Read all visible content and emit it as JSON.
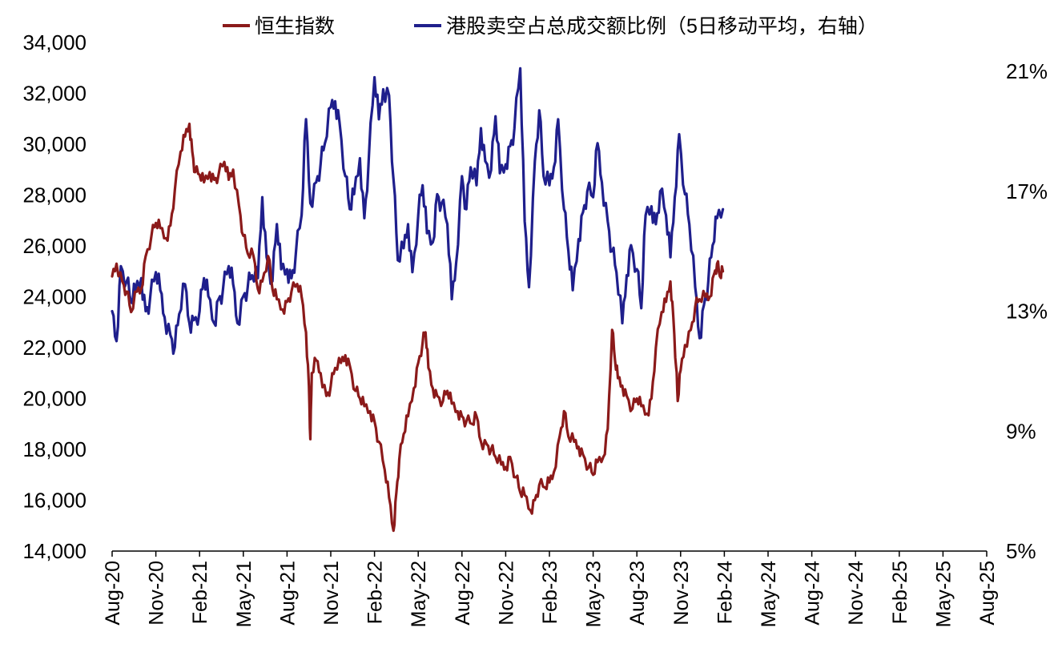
{
  "chart_data": {
    "type": "line",
    "title": "",
    "x_ticks": [
      "Aug-20",
      "Nov-20",
      "Feb-21",
      "May-21",
      "Aug-21",
      "Nov-21",
      "Feb-22",
      "May-22",
      "Aug-22",
      "Nov-22",
      "Feb-23",
      "May-23",
      "Aug-23",
      "Nov-23",
      "Feb-24",
      "May-24",
      "Aug-24",
      "Nov-24",
      "Feb-25",
      "May-25",
      "Aug-25"
    ],
    "x_range": [
      "Aug-20",
      "Aug-25"
    ],
    "y_left": {
      "ticks": [
        "34,000",
        "32,000",
        "30,000",
        "28,000",
        "26,000",
        "24,000",
        "22,000",
        "20,000",
        "18,000",
        "16,000",
        "14,000"
      ],
      "range": [
        14000,
        34000
      ]
    },
    "y_right": {
      "ticks": [
        "21%",
        "17%",
        "13%",
        "9%",
        "5%"
      ],
      "range": [
        5,
        21.5
      ]
    },
    "legend_position": "top",
    "grid": false,
    "series": [
      {
        "name": "恒生指数",
        "axis": "left",
        "color": "#8B1A1A",
        "points": [
          [
            0,
            24800
          ],
          [
            0.3,
            25300
          ],
          [
            0.7,
            24600
          ],
          [
            1.0,
            24200
          ],
          [
            1.3,
            23400
          ],
          [
            1.7,
            24200
          ],
          [
            2.0,
            24300
          ],
          [
            2.3,
            25600
          ],
          [
            2.7,
            26400
          ],
          [
            3.0,
            26900
          ],
          [
            3.3,
            26700
          ],
          [
            3.7,
            26300
          ],
          [
            4.0,
            26800
          ],
          [
            4.3,
            28200
          ],
          [
            4.7,
            29700
          ],
          [
            5.0,
            30300
          ],
          [
            5.3,
            30800
          ],
          [
            5.5,
            29700
          ],
          [
            5.7,
            28900
          ],
          [
            6.0,
            28800
          ],
          [
            6.3,
            28500
          ],
          [
            6.7,
            28900
          ],
          [
            7.0,
            28600
          ],
          [
            7.3,
            28800
          ],
          [
            7.7,
            29300
          ],
          [
            8.0,
            28600
          ],
          [
            8.3,
            29000
          ],
          [
            8.7,
            27600
          ],
          [
            9.0,
            26400
          ],
          [
            9.3,
            25700
          ],
          [
            9.7,
            25600
          ],
          [
            10.0,
            24300
          ],
          [
            10.3,
            24600
          ],
          [
            10.7,
            25600
          ],
          [
            11.0,
            24300
          ],
          [
            11.3,
            23900
          ],
          [
            11.7,
            23500
          ],
          [
            12.0,
            23800
          ],
          [
            12.3,
            24200
          ],
          [
            12.7,
            24500
          ],
          [
            13.0,
            24000
          ],
          [
            13.3,
            22600
          ],
          [
            13.5,
            20500
          ],
          [
            13.6,
            18400
          ],
          [
            13.7,
            21000
          ],
          [
            14.0,
            21500
          ],
          [
            14.3,
            21000
          ],
          [
            14.7,
            20100
          ],
          [
            15.0,
            20500
          ],
          [
            15.3,
            21200
          ],
          [
            15.7,
            21400
          ],
          [
            16.0,
            21700
          ],
          [
            16.3,
            21300
          ],
          [
            16.7,
            20300
          ],
          [
            17.0,
            20000
          ],
          [
            17.3,
            19700
          ],
          [
            17.7,
            19500
          ],
          [
            18.0,
            19100
          ],
          [
            18.3,
            18300
          ],
          [
            18.7,
            17200
          ],
          [
            19.0,
            16100
          ],
          [
            19.3,
            14800
          ],
          [
            19.5,
            16300
          ],
          [
            19.7,
            17600
          ],
          [
            20.0,
            18600
          ],
          [
            20.3,
            19300
          ],
          [
            20.7,
            20400
          ],
          [
            21.0,
            21400
          ],
          [
            21.3,
            22200
          ],
          [
            21.5,
            22600
          ],
          [
            21.7,
            21200
          ],
          [
            22.0,
            20400
          ],
          [
            22.3,
            20100
          ],
          [
            22.7,
            19900
          ],
          [
            23.0,
            20300
          ],
          [
            23.3,
            19800
          ],
          [
            23.7,
            19500
          ],
          [
            24.0,
            19300
          ],
          [
            24.3,
            19100
          ],
          [
            24.7,
            19000
          ],
          [
            25.0,
            19300
          ],
          [
            25.3,
            18300
          ],
          [
            25.7,
            18200
          ],
          [
            26.0,
            18000
          ],
          [
            26.3,
            17700
          ],
          [
            26.7,
            17400
          ],
          [
            27.0,
            17300
          ],
          [
            27.3,
            17700
          ],
          [
            27.7,
            16900
          ],
          [
            28.0,
            16300
          ],
          [
            28.3,
            16200
          ],
          [
            28.7,
            15600
          ],
          [
            29.0,
            16000
          ],
          [
            29.3,
            16600
          ],
          [
            29.7,
            16500
          ],
          [
            30.0,
            16700
          ],
          [
            30.3,
            17100
          ],
          [
            30.7,
            18500
          ],
          [
            31.0,
            19500
          ],
          [
            31.3,
            18500
          ],
          [
            31.7,
            18300
          ],
          [
            32.0,
            18100
          ],
          [
            32.3,
            17800
          ],
          [
            32.7,
            17300
          ],
          [
            33.0,
            17000
          ],
          [
            33.3,
            17500
          ],
          [
            33.7,
            17700
          ],
          [
            34.0,
            18800
          ],
          [
            34.3,
            22700
          ],
          [
            34.5,
            21500
          ],
          [
            34.7,
            20800
          ],
          [
            35.0,
            20500
          ],
          [
            35.3,
            20100
          ],
          [
            35.7,
            19600
          ],
          [
            36.0,
            20000
          ],
          [
            36.3,
            19700
          ],
          [
            36.7,
            19400
          ],
          [
            37.0,
            20000
          ],
          [
            37.3,
            22000
          ],
          [
            37.7,
            23400
          ],
          [
            38.0,
            23800
          ],
          [
            38.3,
            24600
          ],
          [
            38.5,
            23200
          ],
          [
            38.7,
            21200
          ],
          [
            38.8,
            19900
          ],
          [
            39.0,
            21100
          ],
          [
            39.3,
            22100
          ],
          [
            39.7,
            22700
          ],
          [
            40.0,
            23600
          ],
          [
            40.3,
            23900
          ],
          [
            40.7,
            24000
          ],
          [
            41.0,
            24000
          ],
          [
            41.3,
            24900
          ],
          [
            41.5,
            25300
          ],
          [
            41.7,
            24800
          ],
          [
            41.9,
            25000
          ]
        ]
      },
      {
        "name": "港股卖空占总成交额比例（5日移动平均，右轴）",
        "axis": "right",
        "color": "#1F1F8C",
        "points": [
          [
            0,
            13.0
          ],
          [
            0.3,
            12.0
          ],
          [
            0.6,
            14.5
          ],
          [
            1.0,
            14.0
          ],
          [
            1.3,
            13.3
          ],
          [
            1.6,
            13.7
          ],
          [
            2.0,
            14.1
          ],
          [
            2.3,
            13.0
          ],
          [
            2.6,
            13.4
          ],
          [
            3.0,
            14.3
          ],
          [
            3.3,
            13.7
          ],
          [
            3.6,
            12.8
          ],
          [
            4.0,
            12.2
          ],
          [
            4.3,
            11.8
          ],
          [
            4.6,
            12.9
          ],
          [
            5.0,
            13.9
          ],
          [
            5.3,
            12.6
          ],
          [
            5.6,
            12.7
          ],
          [
            6.0,
            13.0
          ],
          [
            6.3,
            14.1
          ],
          [
            6.6,
            13.5
          ],
          [
            7.0,
            12.6
          ],
          [
            7.3,
            13.4
          ],
          [
            7.6,
            13.7
          ],
          [
            8.0,
            14.5
          ],
          [
            8.3,
            13.9
          ],
          [
            8.6,
            12.6
          ],
          [
            9.0,
            13.5
          ],
          [
            9.3,
            13.8
          ],
          [
            9.6,
            14.2
          ],
          [
            10.0,
            14.1
          ],
          [
            10.3,
            16.8
          ],
          [
            10.6,
            14.8
          ],
          [
            11.0,
            14.0
          ],
          [
            11.3,
            15.9
          ],
          [
            11.6,
            14.4
          ],
          [
            12.0,
            14.4
          ],
          [
            12.3,
            14.1
          ],
          [
            12.6,
            14.9
          ],
          [
            13.0,
            16.2
          ],
          [
            13.3,
            19.4
          ],
          [
            13.6,
            16.6
          ],
          [
            14.0,
            17.3
          ],
          [
            14.3,
            17.9
          ],
          [
            14.6,
            18.6
          ],
          [
            15.0,
            19.8
          ],
          [
            15.3,
            20.0
          ],
          [
            15.6,
            19.3
          ],
          [
            16.0,
            17.5
          ],
          [
            16.3,
            16.4
          ],
          [
            16.6,
            16.9
          ],
          [
            17.0,
            18.1
          ],
          [
            17.3,
            16.1
          ],
          [
            17.6,
            18.0
          ],
          [
            18.0,
            20.8
          ],
          [
            18.3,
            19.4
          ],
          [
            18.6,
            20.4
          ],
          [
            19.0,
            20.2
          ],
          [
            19.3,
            17.4
          ],
          [
            19.6,
            14.7
          ],
          [
            20.0,
            15.1
          ],
          [
            20.3,
            15.9
          ],
          [
            20.6,
            14.3
          ],
          [
            21.0,
            16.2
          ],
          [
            21.3,
            17.2
          ],
          [
            21.6,
            15.6
          ],
          [
            22.0,
            15.3
          ],
          [
            22.3,
            16.9
          ],
          [
            22.6,
            16.6
          ],
          [
            23.0,
            15.9
          ],
          [
            23.3,
            13.4
          ],
          [
            23.6,
            14.6
          ],
          [
            24.0,
            17.5
          ],
          [
            24.3,
            16.4
          ],
          [
            24.6,
            17.8
          ],
          [
            25.0,
            17.2
          ],
          [
            25.3,
            19.1
          ],
          [
            25.6,
            18.0
          ],
          [
            26.0,
            17.7
          ],
          [
            26.3,
            19.5
          ],
          [
            26.6,
            17.6
          ],
          [
            27.0,
            17.9
          ],
          [
            27.3,
            18.5
          ],
          [
            27.6,
            19.1
          ],
          [
            28.0,
            21.1
          ],
          [
            28.3,
            16.0
          ],
          [
            28.6,
            13.8
          ],
          [
            29.0,
            18.0
          ],
          [
            29.3,
            19.7
          ],
          [
            29.6,
            17.5
          ],
          [
            30.0,
            17.2
          ],
          [
            30.3,
            17.8
          ],
          [
            30.6,
            19.4
          ],
          [
            31.0,
            16.4
          ],
          [
            31.3,
            15.0
          ],
          [
            31.6,
            13.7
          ],
          [
            32.0,
            15.4
          ],
          [
            32.3,
            16.3
          ],
          [
            32.6,
            17.0
          ],
          [
            33.0,
            16.8
          ],
          [
            33.3,
            18.6
          ],
          [
            33.6,
            17.3
          ],
          [
            34.0,
            16.0
          ],
          [
            34.3,
            15.0
          ],
          [
            34.6,
            14.3
          ],
          [
            35.0,
            12.6
          ],
          [
            35.3,
            14.2
          ],
          [
            35.6,
            15.2
          ],
          [
            36.0,
            14.4
          ],
          [
            36.3,
            13.1
          ],
          [
            36.6,
            16.2
          ],
          [
            37.0,
            16.5
          ],
          [
            37.3,
            15.9
          ],
          [
            37.6,
            17.0
          ],
          [
            38.0,
            16.2
          ],
          [
            38.3,
            14.8
          ],
          [
            38.6,
            16.8
          ],
          [
            38.9,
            18.9
          ],
          [
            39.3,
            16.9
          ],
          [
            39.6,
            15.9
          ],
          [
            40.0,
            13.8
          ],
          [
            40.3,
            12.1
          ],
          [
            40.6,
            13.2
          ],
          [
            40.9,
            14.0
          ],
          [
            41.2,
            15.2
          ],
          [
            41.5,
            16.1
          ],
          [
            41.9,
            16.4
          ]
        ]
      }
    ]
  }
}
